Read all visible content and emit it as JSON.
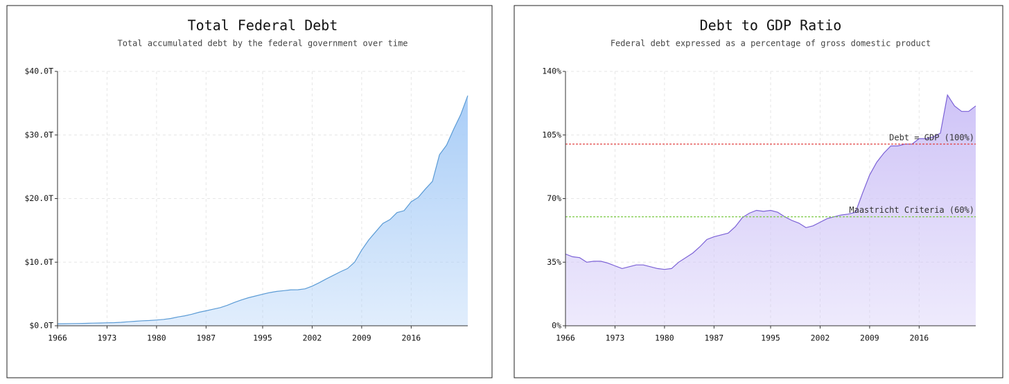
{
  "chart_data": [
    {
      "type": "area",
      "title": "Total Federal Debt",
      "subtitle": "Total accumulated debt by the federal government over time",
      "x": [
        1966,
        1967,
        1968,
        1969,
        1970,
        1971,
        1972,
        1973,
        1974,
        1975,
        1976,
        1977,
        1978,
        1979,
        1980,
        1981,
        1982,
        1983,
        1984,
        1985,
        1986,
        1987,
        1988,
        1989,
        1990,
        1991,
        1992,
        1993,
        1994,
        1995,
        1996,
        1997,
        1998,
        1999,
        2000,
        2001,
        2002,
        2003,
        2004,
        2005,
        2006,
        2007,
        2008,
        2009,
        2010,
        2011,
        2012,
        2013,
        2014,
        2015,
        2016,
        2017,
        2018,
        2019,
        2020,
        2021,
        2022,
        2023,
        2024
      ],
      "values": [
        0.32,
        0.33,
        0.35,
        0.36,
        0.38,
        0.41,
        0.44,
        0.47,
        0.49,
        0.54,
        0.63,
        0.71,
        0.78,
        0.83,
        0.91,
        1.0,
        1.14,
        1.38,
        1.57,
        1.82,
        2.13,
        2.35,
        2.6,
        2.86,
        3.23,
        3.67,
        4.06,
        4.41,
        4.69,
        4.97,
        5.22,
        5.41,
        5.53,
        5.66,
        5.67,
        5.81,
        6.23,
        6.78,
        7.38,
        7.93,
        8.5,
        9.0,
        10.0,
        11.9,
        13.5,
        14.8,
        16.1,
        16.7,
        17.8,
        18.1,
        19.5,
        20.2,
        21.5,
        22.7,
        26.9,
        28.4,
        30.9,
        33.2,
        36.2
      ],
      "color": "#5b9bd5",
      "fill_color": "#a9cdf7",
      "xlim": [
        1966,
        2024
      ],
      "xticks": [
        1966,
        1973,
        1980,
        1987,
        1995,
        2002,
        2009,
        2016
      ],
      "ylim": [
        0,
        40
      ],
      "yticks": [
        {
          "value": 0,
          "label": "$0.0T"
        },
        {
          "value": 10,
          "label": "$10.0T"
        },
        {
          "value": 20,
          "label": "$20.0T"
        },
        {
          "value": 30,
          "label": "$30.0T"
        },
        {
          "value": 40,
          "label": "$40.0T"
        }
      ],
      "grid": true
    },
    {
      "type": "area",
      "title": "Debt to GDP Ratio",
      "subtitle": "Federal debt expressed as a percentage of gross domestic product",
      "x": [
        1966,
        1967,
        1968,
        1969,
        1970,
        1971,
        1972,
        1973,
        1974,
        1975,
        1976,
        1977,
        1978,
        1979,
        1980,
        1981,
        1982,
        1983,
        1984,
        1985,
        1986,
        1987,
        1988,
        1989,
        1990,
        1991,
        1992,
        1993,
        1994,
        1995,
        1996,
        1997,
        1998,
        1999,
        2000,
        2001,
        2002,
        2003,
        2004,
        2005,
        2006,
        2007,
        2008,
        2009,
        2010,
        2011,
        2012,
        2013,
        2014,
        2015,
        2016,
        2017,
        2018,
        2019,
        2020,
        2021,
        2022,
        2023,
        2024
      ],
      "values": [
        39.5,
        38,
        37.5,
        35,
        35.5,
        35.5,
        34.5,
        33,
        31.5,
        32.5,
        33.5,
        33.5,
        32.5,
        31.5,
        31,
        31.5,
        35,
        37.5,
        40,
        43.5,
        47.5,
        49,
        50,
        51,
        54.5,
        59.5,
        62,
        63.5,
        63,
        63.5,
        62.5,
        60,
        58,
        56.5,
        54,
        55,
        57,
        59,
        60,
        61,
        61.5,
        62.5,
        73,
        83,
        90,
        95,
        99,
        99,
        100,
        100,
        103,
        103,
        104,
        106,
        127,
        121,
        118,
        118,
        121
      ],
      "color": "#7b61d6",
      "fill_color": "#cfc4f7",
      "xlim": [
        1966,
        2024
      ],
      "xticks": [
        1966,
        1973,
        1980,
        1987,
        1995,
        2002,
        2009,
        2016
      ],
      "ylim": [
        0,
        140
      ],
      "yticks": [
        {
          "value": 0,
          "label": "0%"
        },
        {
          "value": 35,
          "label": "35%"
        },
        {
          "value": 70,
          "label": "70%"
        },
        {
          "value": 105,
          "label": "105%"
        },
        {
          "value": 140,
          "label": "140%"
        }
      ],
      "grid": true,
      "reference_lines": [
        {
          "value": 100,
          "label": "Debt = GDP (100%)",
          "color": "#e04040"
        },
        {
          "value": 60,
          "label": "Maastricht Criteria (60%)",
          "color": "#7ac943"
        }
      ]
    }
  ]
}
